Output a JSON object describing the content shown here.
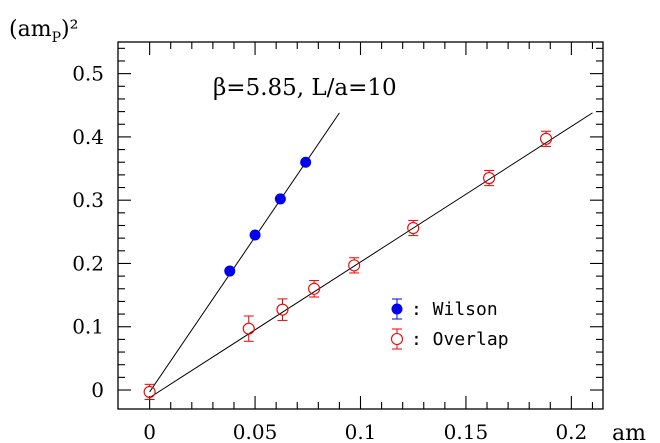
{
  "chart_data": {
    "type": "scatter",
    "title": "β=5.85, L/a=10",
    "xlabel": "am",
    "ylabel": "(am",
    "ylabel_sub": "P",
    "ylabel_sup": ")²",
    "xlim": [
      -0.015,
      0.215
    ],
    "ylim": [
      -0.03,
      0.55
    ],
    "xticks": [
      0,
      0.05,
      0.1,
      0.15,
      0.2
    ],
    "xtick_labels": [
      "0",
      "0.05",
      "0.1",
      "0.15",
      "0.2"
    ],
    "yticks": [
      0,
      0.1,
      0.2,
      0.3,
      0.4,
      0.5
    ],
    "ytick_labels": [
      "0",
      "0.1",
      "0.2",
      "0.3",
      "0.4",
      "0.5"
    ],
    "legend_position": "right, lower middle",
    "series": [
      {
        "name": "Wilson",
        "legend_label": ": Wilson",
        "color": "#0000ee",
        "marker": "filled-circle",
        "x": [
          0.038,
          0.05,
          0.062,
          0.074
        ],
        "y": [
          0.188,
          0.245,
          0.302,
          0.36
        ],
        "yerr": [
          0.005,
          0.005,
          0.005,
          0.005
        ],
        "fit_line": {
          "x0": 0.0,
          "y0": -0.003,
          "x1": 0.09,
          "y1": 0.438
        }
      },
      {
        "name": "Overlap",
        "legend_label": ": Overlap",
        "color": "#ee0000",
        "marker": "open-circle",
        "x": [
          0.0,
          0.047,
          0.063,
          0.078,
          0.097,
          0.125,
          0.161,
          0.188
        ],
        "y": [
          -0.003,
          0.097,
          0.127,
          0.16,
          0.197,
          0.256,
          0.335,
          0.397
        ],
        "yerr": [
          0.012,
          0.02,
          0.017,
          0.013,
          0.012,
          0.012,
          0.012,
          0.012
        ],
        "fit_line": {
          "x0": 0.0,
          "y0": -0.012,
          "x1": 0.21,
          "y1": 0.438
        }
      }
    ]
  }
}
